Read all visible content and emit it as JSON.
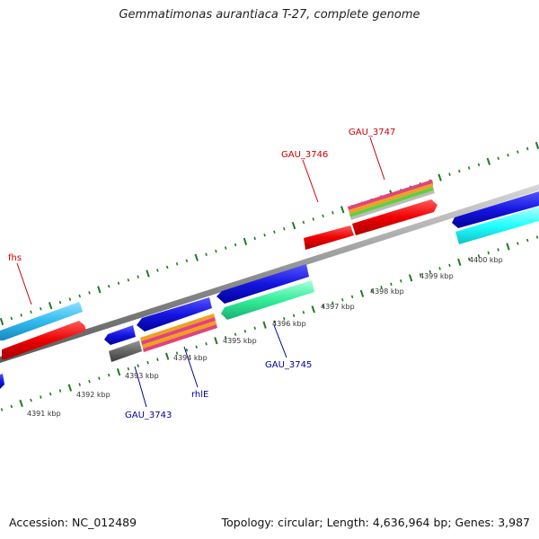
{
  "title": "Gemmatimonas aurantiaca T-27, complete genome",
  "footer": {
    "accession": "Accession: NC_012489",
    "stats": "Topology: circular; Length: 4,636,964 bp; Genes: 3,987"
  },
  "colors": {
    "backbone": "#8c8c8c",
    "tick": "#1f7a1f",
    "forward_label": "#cc0000",
    "reverse_label": "#000099"
  },
  "scale_labels": [
    "4391 kbp",
    "4392 kbp",
    "4393 kbp",
    "4394 kbp",
    "4395 kbp",
    "4396 kbp",
    "4397 kbp",
    "4398 kbp",
    "4399 kbp",
    "4400 kbp"
  ],
  "gene_labels": {
    "fhs": "fhs",
    "gau3746": "GAU_3746",
    "gau3747": "GAU_3747",
    "gau3743": "GAU_3743",
    "rhle": "rhlE",
    "gau3745": "GAU_3745"
  }
}
